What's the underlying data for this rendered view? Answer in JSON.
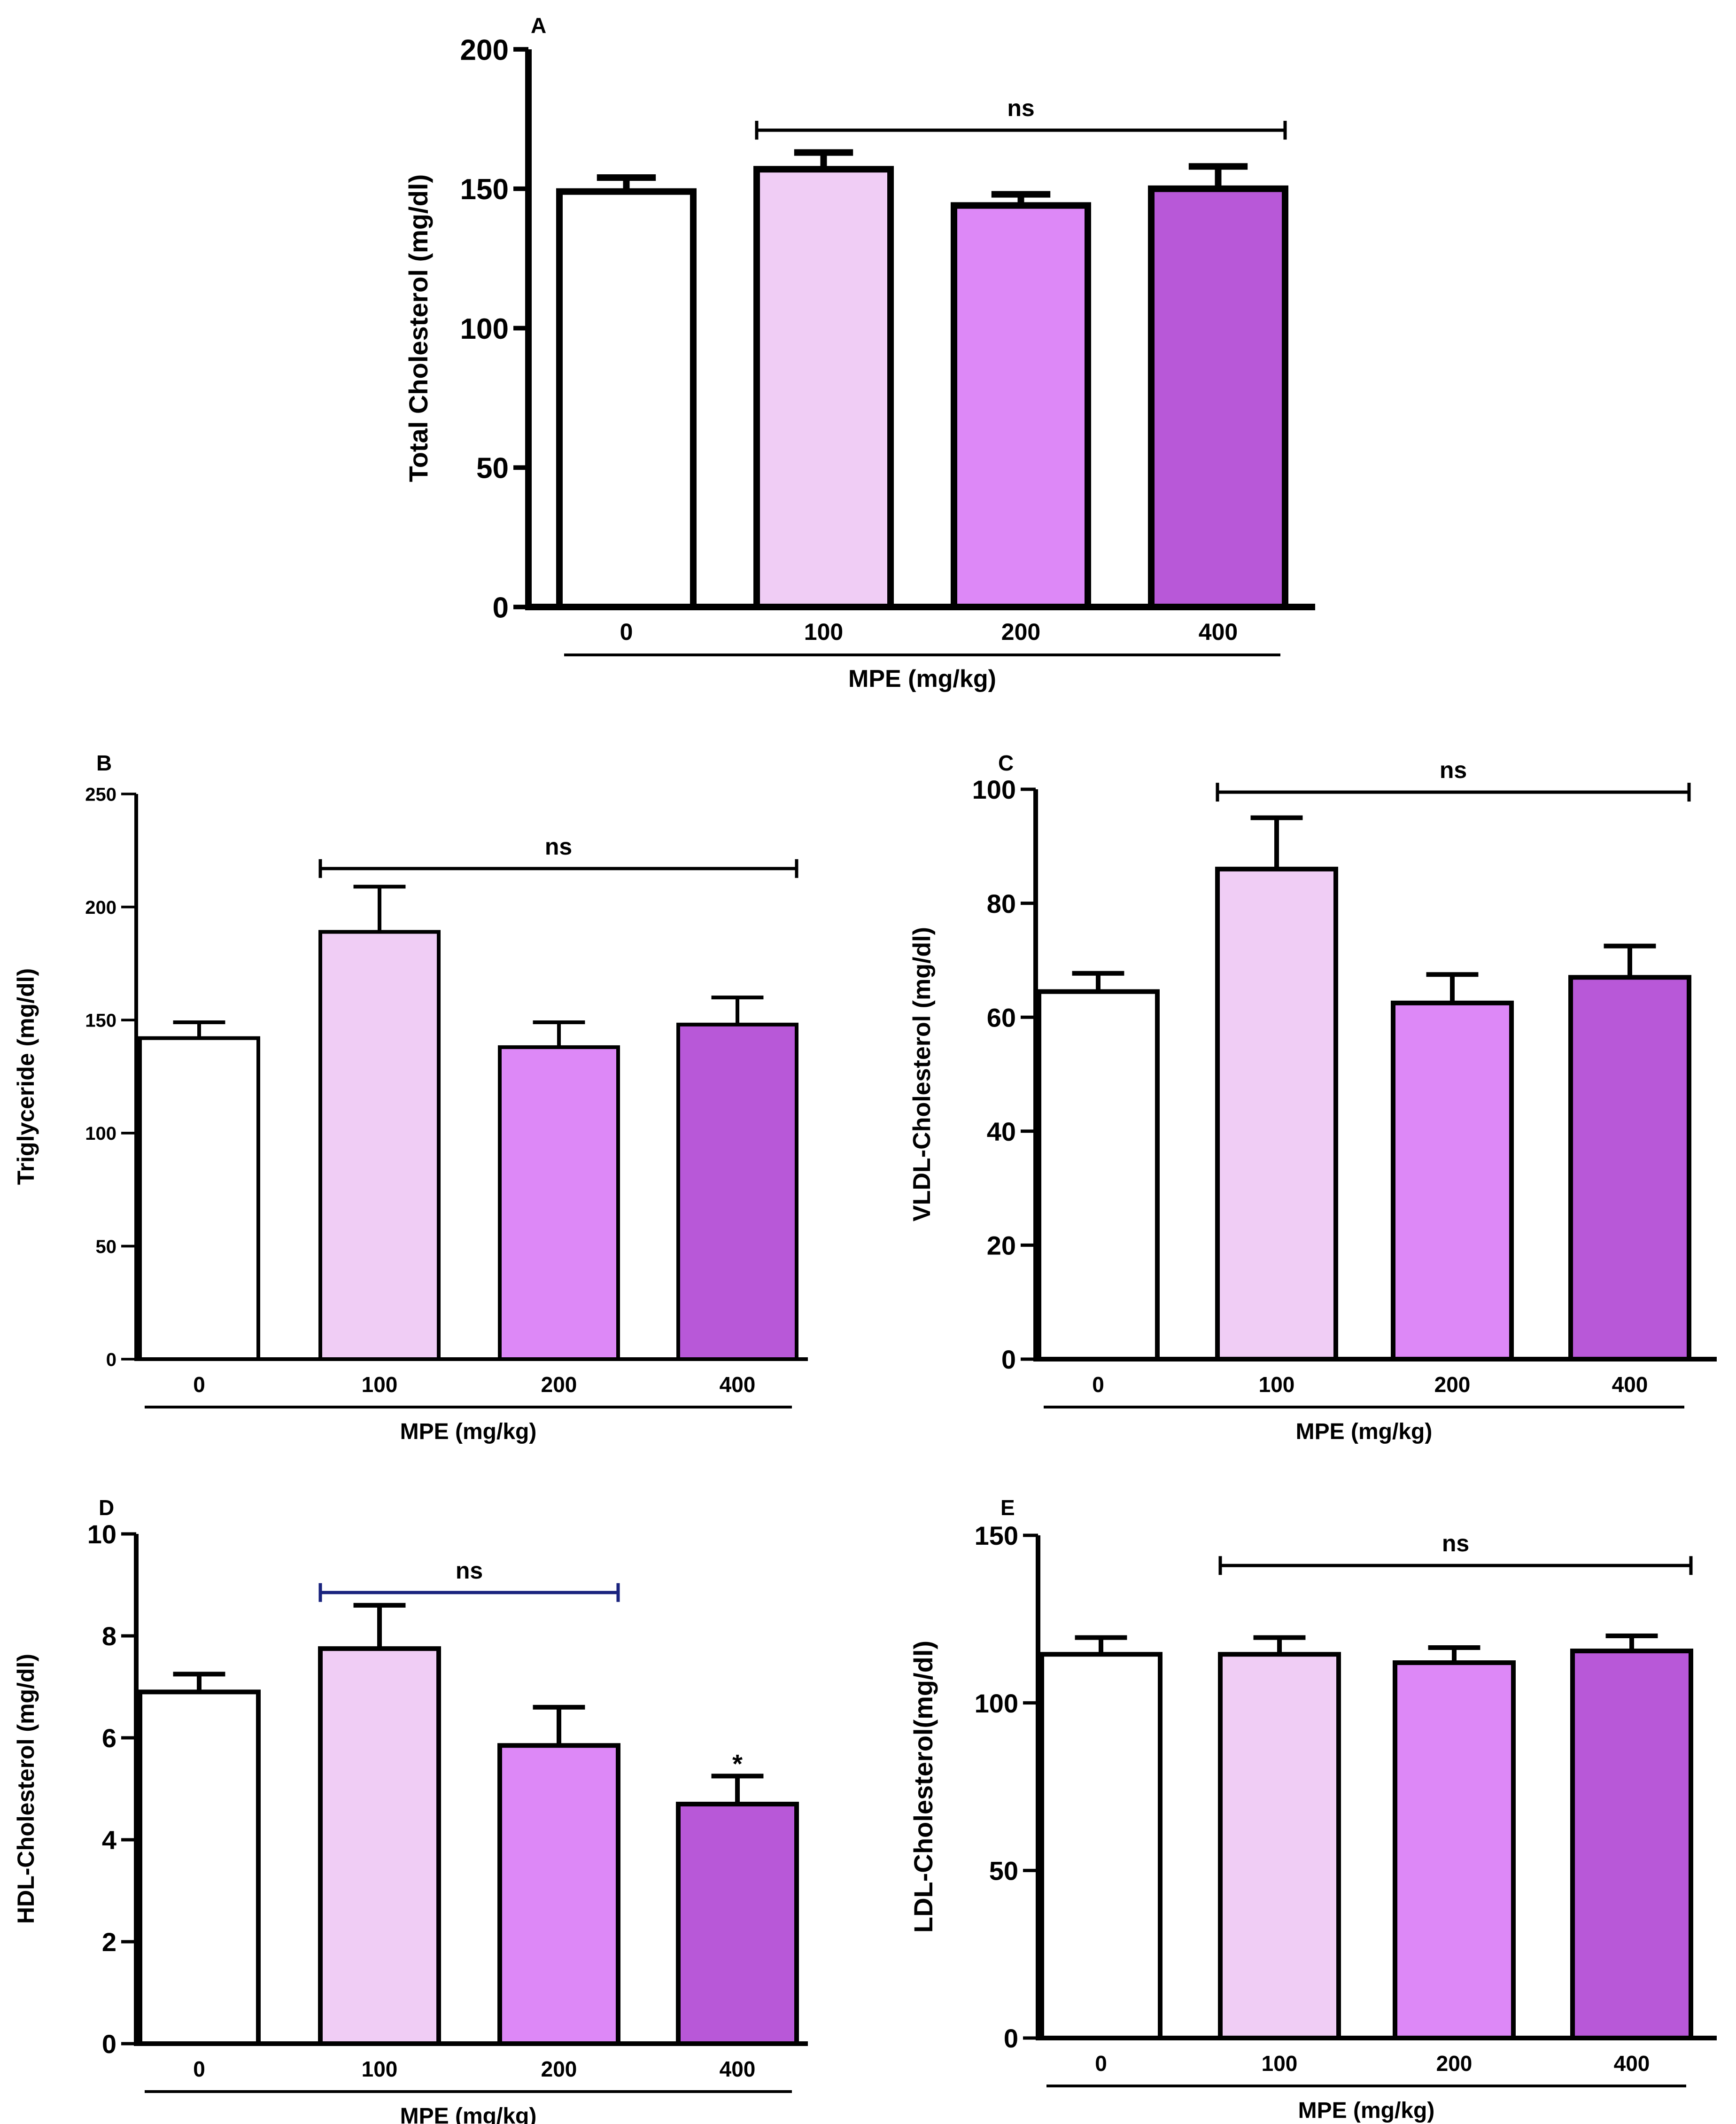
{
  "figure_title": "Lipid profile panels",
  "colors": {
    "bar_fills": [
      "#ffffff",
      "#f0cdf5",
      "#dd88f7",
      "#b858d8"
    ],
    "outline": "#000000",
    "navy_bracket": "#1a237e"
  },
  "chart_data": [
    {
      "id": "A",
      "type": "bar",
      "panel_label": "A",
      "title": "",
      "ylabel": "Total Cholesterol (mg/dl)",
      "xlabel": "MPE (mg/kg)",
      "categories": [
        "0",
        "100",
        "200",
        "400"
      ],
      "values": [
        149,
        157,
        144,
        150
      ],
      "errors": [
        5,
        6,
        4,
        8
      ],
      "ylim": [
        0,
        200
      ],
      "yticks": [
        0,
        50,
        100,
        150,
        200
      ],
      "ytick_labels": [
        "0",
        "50",
        "100",
        "150",
        "200"
      ],
      "grid": false,
      "significance": {
        "label": "ns",
        "from": "100",
        "to": "400",
        "y": 171,
        "color": "black"
      },
      "star": null
    },
    {
      "id": "B",
      "type": "bar",
      "panel_label": "B",
      "title": "",
      "ylabel": "Triglyceride (mg/dl)",
      "xlabel": "MPE (mg/kg)",
      "categories": [
        "0",
        "100",
        "200",
        "400"
      ],
      "values": [
        142,
        189,
        138,
        148
      ],
      "errors": [
        7,
        20,
        11,
        12
      ],
      "ylim": [
        0,
        250
      ],
      "yticks": [
        0,
        50,
        100,
        150,
        200,
        250
      ],
      "ytick_labels": [
        "0",
        "50",
        "100",
        "150",
        "200",
        "250"
      ],
      "grid": false,
      "significance": {
        "label": "ns",
        "from": "100",
        "to": "400",
        "y": 217,
        "color": "black"
      },
      "star": null
    },
    {
      "id": "C",
      "type": "bar",
      "panel_label": "C",
      "title": "",
      "ylabel": "VLDL-Cholesterol (mg/dl)",
      "xlabel": "MPE (mg/kg)",
      "categories": [
        "0",
        "100",
        "200",
        "400"
      ],
      "values": [
        64.5,
        86,
        62.5,
        67
      ],
      "errors": [
        3.2,
        9,
        5,
        5.5
      ],
      "ylim": [
        0,
        100
      ],
      "yticks": [
        0,
        20,
        40,
        60,
        80,
        100
      ],
      "ytick_labels": [
        "0",
        "20",
        "40",
        "60",
        "80",
        "100"
      ],
      "grid": false,
      "significance": {
        "label": "ns",
        "from": "100",
        "to": "400",
        "y": 99.5,
        "color": "black"
      },
      "star": null
    },
    {
      "id": "D",
      "type": "bar",
      "panel_label": "D",
      "title": "",
      "ylabel": "HDL-Cholesterol (mg/dl)",
      "xlabel": "MPE (mg/kg)",
      "categories": [
        "0",
        "100",
        "200",
        "400"
      ],
      "values": [
        6.9,
        7.75,
        5.85,
        4.7
      ],
      "errors": [
        0.35,
        0.85,
        0.75,
        0.55
      ],
      "ylim": [
        0,
        10
      ],
      "yticks": [
        0,
        2,
        4,
        6,
        8,
        10
      ],
      "ytick_labels": [
        "0",
        "2",
        "4",
        "6",
        "8",
        "10"
      ],
      "grid": false,
      "significance": {
        "label": "ns",
        "from": "100",
        "to": "200",
        "y": 8.85,
        "color": "navy"
      },
      "star": {
        "label": "*",
        "category": "400",
        "y": 5.5
      }
    },
    {
      "id": "E",
      "type": "bar",
      "panel_label": "E",
      "title": "",
      "ylabel": "LDL-Cholesterol(mg/dl)",
      "xlabel": "MPE (mg/kg)",
      "categories": [
        "0",
        "100",
        "200",
        "400"
      ],
      "values": [
        114.5,
        114.5,
        112,
        115.5
      ],
      "errors": [
        5,
        5,
        4.5,
        4.5
      ],
      "ylim": [
        0,
        150
      ],
      "yticks": [
        0,
        50,
        100,
        150
      ],
      "ytick_labels": [
        "0",
        "50",
        "100",
        "150"
      ],
      "grid": false,
      "significance": {
        "label": "ns",
        "from": "100",
        "to": "400",
        "y": 141,
        "color": "black"
      },
      "star": null
    }
  ]
}
